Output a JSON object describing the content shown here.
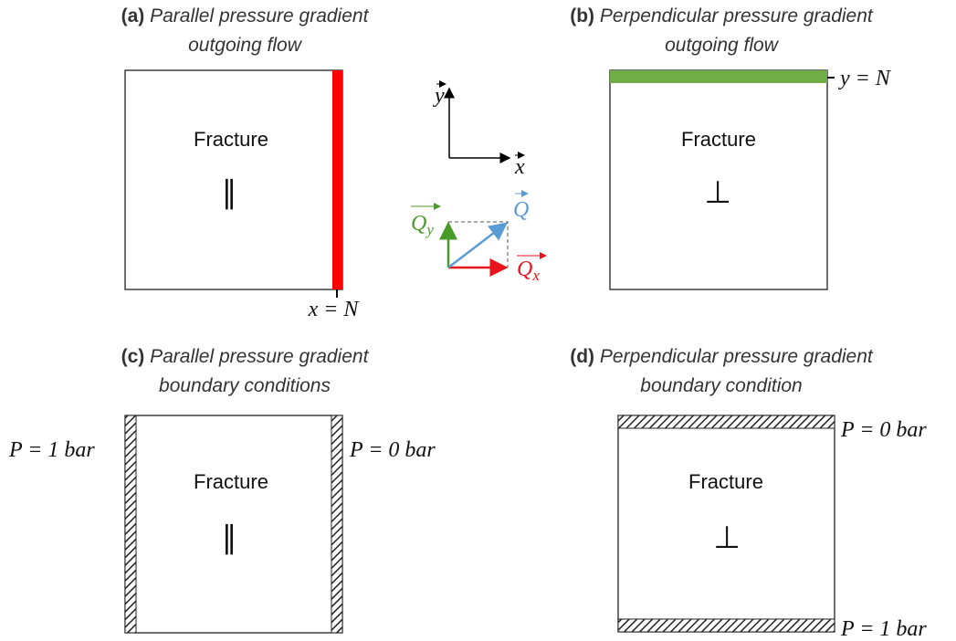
{
  "panels": [
    {
      "label": "(a)",
      "title": [
        "Parallel pressure gradient",
        "outgoing flow"
      ],
      "box_text": "Fracture",
      "symbol": "∥",
      "annotations": [
        "x = N"
      ]
    },
    {
      "label": "(b)",
      "title": [
        "Perpendicular pressure gradient",
        "outgoing flow"
      ],
      "box_text": "Fracture",
      "symbol": "⊥",
      "annotations": [
        "y = N"
      ]
    },
    {
      "label": "(c)",
      "title": [
        "Parallel pressure gradient",
        "boundary conditions"
      ],
      "box_text": "Fracture",
      "symbol": "∥",
      "annotations": [
        "P = 1 bar",
        "P = 0 bar"
      ]
    },
    {
      "label": "(d)",
      "title": [
        "Perpendicular pressure gradient",
        "boundary condition"
      ],
      "box_text": "Fracture",
      "symbol": "⊥",
      "annotations": [
        "P = 0 bar",
        "P = 1 bar"
      ]
    }
  ],
  "axes": {
    "y": "y",
    "x": "x"
  },
  "vectors": {
    "total": {
      "symbol": "Q"
    },
    "y_component": {
      "symbol": "Q",
      "subscript": "y"
    },
    "x_component": {
      "symbol": "Q",
      "subscript": "x"
    }
  }
}
